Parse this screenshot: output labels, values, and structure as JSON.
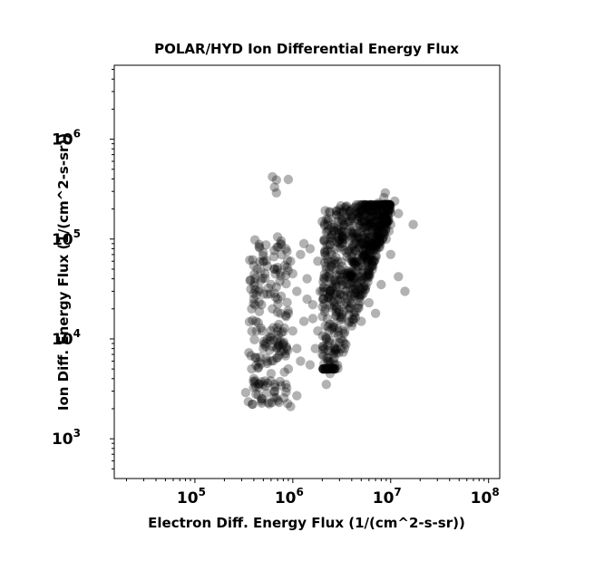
{
  "chart_data": {
    "type": "scatter",
    "title": "POLAR/HYD  Ion Differential Energy Flux",
    "xlabel": "Electron Diff. Energy Flux (1/(cm^2-s-sr))",
    "ylabel": "Ion Diff. Energy Flux (1/(cm^2-s-sr))",
    "xscale": "log",
    "yscale": "log",
    "xlim": [
      15000,
      130000000
    ],
    "ylim": [
      400,
      5500000
    ],
    "xticks": [
      {
        "value": 100000,
        "base": "10",
        "exp": "5"
      },
      {
        "value": 1000000,
        "base": "10",
        "exp": "6"
      },
      {
        "value": 10000000,
        "base": "10",
        "exp": "7"
      },
      {
        "value": 100000000,
        "base": "10",
        "exp": "8"
      }
    ],
    "yticks": [
      {
        "value": 1000,
        "base": "10",
        "exp": "3"
      },
      {
        "value": 10000,
        "base": "10",
        "exp": "4"
      },
      {
        "value": 100000,
        "base": "10",
        "exp": "5"
      },
      {
        "value": 1000000,
        "base": "10",
        "exp": "6"
      }
    ],
    "grid": false,
    "legend": "none",
    "marker_color": "#000000",
    "marker_alpha": 0.3,
    "clusters": [
      {
        "region": "main dense band",
        "x_range": [
          2000000,
          10000000
        ],
        "y_range": [
          5000,
          220000
        ]
      },
      {
        "region": "left cluster",
        "x_range": [
          350000,
          900000
        ],
        "y_range": [
          2200,
          100000
        ]
      },
      {
        "region": "upper outliers",
        "x_range": [
          580000,
          900000
        ],
        "y_range": [
          280000,
          430000
        ]
      }
    ],
    "points": [
      [
        620000,
        420000
      ],
      [
        680000,
        390000
      ],
      [
        650000,
        330000
      ],
      [
        680000,
        290000
      ],
      [
        900000,
        395000
      ],
      [
        330000,
        2900
      ],
      [
        950000,
        2100
      ],
      [
        1100000,
        2700
      ],
      [
        480000,
        2500
      ],
      [
        560000,
        2300
      ],
      [
        12000000,
        42000
      ],
      [
        14000000,
        30000
      ],
      [
        11000000,
        240000
      ],
      [
        17000000,
        140000
      ],
      [
        12000000,
        180000
      ],
      [
        6000000,
        23000
      ],
      [
        5000000,
        15000
      ],
      [
        7000000,
        18000
      ],
      [
        8000000,
        35000
      ],
      [
        4500000,
        48000
      ],
      [
        3200000,
        44000
      ],
      [
        6800000,
        60000
      ],
      [
        10000000,
        70000
      ],
      [
        9000000,
        100000
      ],
      [
        2800000,
        8000
      ],
      [
        2400000,
        4500
      ],
      [
        2200000,
        3500
      ],
      [
        1800000,
        60000
      ],
      [
        1500000,
        80000
      ],
      [
        1300000,
        90000
      ],
      [
        1200000,
        70000
      ],
      [
        1000000,
        45000
      ],
      [
        1100000,
        30000
      ],
      [
        1400000,
        25000
      ],
      [
        1600000,
        22000
      ],
      [
        1300000,
        15000
      ],
      [
        1000000,
        12000
      ],
      [
        900000,
        18000
      ],
      [
        800000,
        9000
      ],
      [
        1100000,
        8000
      ],
      [
        1200000,
        6000
      ],
      [
        900000,
        5000
      ],
      [
        700000,
        6500
      ],
      [
        850000,
        3500
      ],
      [
        1500000,
        5500
      ],
      [
        1700000,
        8000
      ],
      [
        1800000,
        12000
      ],
      [
        1600000,
        16000
      ],
      [
        1900000,
        30000
      ],
      [
        1400000,
        40000
      ],
      [
        950000,
        60000
      ],
      [
        850000,
        80000
      ],
      [
        700000,
        105000
      ],
      [
        750000,
        90000
      ],
      [
        650000,
        50000
      ],
      [
        600000,
        35000
      ],
      [
        520000,
        45000
      ],
      [
        450000,
        30000
      ],
      [
        400000,
        25000
      ],
      [
        380000,
        20000
      ],
      [
        420000,
        15000
      ],
      [
        480000,
        22000
      ],
      [
        550000,
        28000
      ],
      [
        620000,
        20000
      ],
      [
        700000,
        25000
      ],
      [
        750000,
        18000
      ],
      [
        720000,
        14000
      ],
      [
        700000,
        12000
      ],
      [
        690000,
        10000
      ],
      [
        710000,
        9000
      ],
      [
        550000,
        10000
      ],
      [
        500000,
        8000
      ],
      [
        420000,
        6500
      ],
      [
        380000,
        5000
      ],
      [
        400000,
        4000
      ],
      [
        450000,
        3300
      ],
      [
        520000,
        3800
      ],
      [
        600000,
        4500
      ],
      [
        650000,
        3000
      ],
      [
        420000,
        2800
      ],
      [
        2000000,
        150000
      ],
      [
        2100000,
        95000
      ],
      [
        2300000,
        160000
      ],
      [
        2500000,
        110000
      ],
      [
        2400000,
        185000
      ],
      [
        2800000,
        175000
      ],
      [
        3000000,
        200000
      ],
      [
        3200000,
        150000
      ],
      [
        3500000,
        210000
      ],
      [
        3800000,
        190000
      ],
      [
        4200000,
        205000
      ],
      [
        4600000,
        180000
      ],
      [
        5000000,
        220000
      ],
      [
        5500000,
        200000
      ],
      [
        6000000,
        215000
      ],
      [
        6500000,
        195000
      ],
      [
        7000000,
        210000
      ],
      [
        7500000,
        230000
      ],
      [
        8000000,
        200000
      ],
      [
        8500000,
        260000
      ],
      [
        9000000,
        220000
      ],
      [
        9500000,
        180000
      ],
      [
        8800000,
        290000
      ],
      [
        7200000,
        170000
      ],
      [
        6200000,
        140000
      ],
      [
        5400000,
        150000
      ],
      [
        4800000,
        135000
      ],
      [
        4000000,
        120000
      ],
      [
        3400000,
        100000
      ],
      [
        3000000,
        90000
      ],
      [
        2700000,
        80000
      ],
      [
        2500000,
        70000
      ],
      [
        2300000,
        60000
      ],
      [
        2200000,
        50000
      ],
      [
        2100000,
        40000
      ],
      [
        2000000,
        30000
      ],
      [
        2050000,
        25000
      ],
      [
        2150000,
        20000
      ],
      [
        2250000,
        16000
      ],
      [
        2350000,
        12000
      ],
      [
        2200000,
        10000
      ],
      [
        2100000,
        8000
      ],
      [
        2000000,
        7000
      ],
      [
        2300000,
        6500
      ],
      [
        2400000,
        5500
      ],
      [
        2600000,
        6000
      ],
      [
        2700000,
        9000
      ],
      [
        2600000,
        14000
      ],
      [
        2800000,
        20000
      ],
      [
        3000000,
        28000
      ],
      [
        3200000,
        35000
      ],
      [
        3600000,
        45000
      ],
      [
        4000000,
        60000
      ],
      [
        4400000,
        75000
      ],
      [
        5000000,
        90000
      ],
      [
        5800000,
        110000
      ],
      [
        6600000,
        125000
      ],
      [
        7400000,
        140000
      ],
      [
        8200000,
        160000
      ],
      [
        9200000,
        150000
      ],
      [
        10000000,
        140000
      ],
      [
        9600000,
        120000
      ],
      [
        8600000,
        110000
      ],
      [
        7800000,
        95000
      ],
      [
        7000000,
        85000
      ]
    ]
  }
}
